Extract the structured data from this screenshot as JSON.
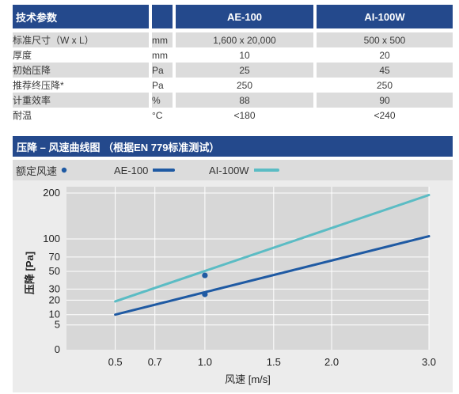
{
  "spec_table": {
    "header": {
      "label": "技术参数",
      "col_ae": "AE-100",
      "col_ai": "AI-100W"
    },
    "rows": [
      {
        "label": "标准尺寸（W x L）",
        "unit": "mm",
        "ae": "1,600 x 20,000",
        "ai": "500 x 500"
      },
      {
        "label": "厚度",
        "unit": "mm",
        "ae": "10",
        "ai": "20"
      },
      {
        "label": "初始压降",
        "unit": "Pa",
        "ae": "25",
        "ai": "45"
      },
      {
        "label": "推荐终压降*",
        "unit": "Pa",
        "ae": "250",
        "ai": "250"
      },
      {
        "label": "计重效率",
        "unit": "%",
        "ae": "88",
        "ai": "90"
      },
      {
        "label": "耐温",
        "unit": "°C",
        "ae": "<180",
        "ai": "<240"
      }
    ]
  },
  "section_title": "压降 – 风速曲线图 （根据EN 779标准测试）",
  "legend": {
    "rated_label": "额定风速",
    "ae_label": "AE-100",
    "ai_label": "AI-100W"
  },
  "colors": {
    "header_bg": "#24498c",
    "ae_line": "#1f5aa3",
    "ai_line": "#5bbcc4",
    "dot": "#1f5aa3"
  },
  "chart_data": {
    "type": "line",
    "xlabel": "风速 [m/s]",
    "ylabel": "压降 [Pa]",
    "x_ticks": [
      "0.5",
      "0.7",
      "1.0",
      "1.5",
      "2.0",
      "3.0"
    ],
    "y_ticks": [
      "0",
      "5",
      "10",
      "20",
      "30",
      "50",
      "70",
      "100",
      "200"
    ],
    "xlim": [
      0.5,
      3.0
    ],
    "ylim": [
      0,
      200
    ],
    "grid": true,
    "series": [
      {
        "name": "AE-100",
        "x": [
          0.5,
          3.0
        ],
        "y": [
          10,
          105
        ]
      },
      {
        "name": "AI-100W",
        "x": [
          0.5,
          3.0
        ],
        "y": [
          19,
          195
        ]
      }
    ],
    "rated_points": [
      {
        "series": "AE-100",
        "x": 1.0,
        "y": 25
      },
      {
        "series": "AI-100W",
        "x": 1.0,
        "y": 45
      }
    ]
  }
}
